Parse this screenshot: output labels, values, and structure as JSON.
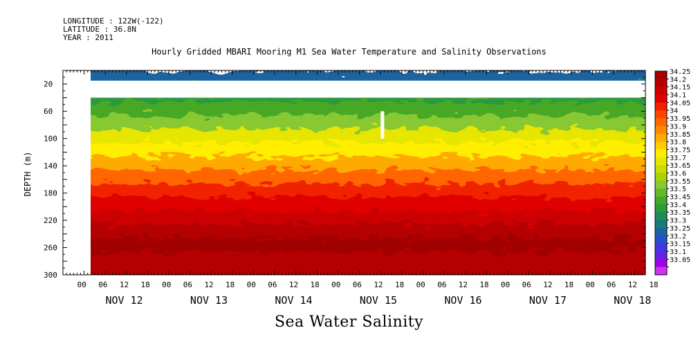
{
  "header": {
    "longitude": "LONGITUDE : 122W(-122)",
    "latitude": "LATITUDE : 36.8N",
    "year": "YEAR : 2011"
  },
  "chart_data": {
    "type": "heatmap",
    "title": "Hourly Gridded MBARI Mooring M1 Sea Water Temperature and Salinity Observations",
    "xlabel": "Sea Water Salinity",
    "ylabel": "DEPTH (m)",
    "ylim": [
      300,
      0
    ],
    "y_ticks": [
      20,
      60,
      100,
      140,
      180,
      220,
      260,
      300
    ],
    "x_hour_ticks": [
      "00",
      "06",
      "12",
      "18",
      "00",
      "06",
      "12",
      "18",
      "00",
      "06",
      "12",
      "18",
      "00",
      "06",
      "12",
      "18",
      "00",
      "06",
      "12",
      "18",
      "00",
      "06",
      "12",
      "18",
      "00",
      "06",
      "12",
      "18"
    ],
    "x_day_labels": [
      "NOV 12",
      "NOV 13",
      "NOV 14",
      "NOV 15",
      "NOV 16",
      "NOV 17",
      "NOV 18"
    ],
    "x_start": "2011-11-12T00:00",
    "data_start": "2011-11-12T06:00",
    "x_end": "2011-11-18T21:00",
    "colorbar_levels": [
      "34.25",
      "34.2",
      "34.15",
      "34.1",
      "34.05",
      "34",
      "33.95",
      "33.9",
      "33.85",
      "33.8",
      "33.75",
      "33.7",
      "33.65",
      "33.6",
      "33.55",
      "33.5",
      "33.45",
      "33.4",
      "33.35",
      "33.3",
      "33.25",
      "33.2",
      "33.15",
      "33.1",
      "33.05"
    ],
    "colorbar_colors": [
      "#a00000",
      "#b40000",
      "#cc0000",
      "#e00000",
      "#f02000",
      "#ff4400",
      "#ff6600",
      "#ff8800",
      "#ffaa00",
      "#ffcc00",
      "#ffee00",
      "#e6e600",
      "#c8dc00",
      "#a8d200",
      "#88c832",
      "#66b828",
      "#46a828",
      "#2a9a3c",
      "#1e8c5a",
      "#1a7a78",
      "#1a64a0",
      "#2850c8",
      "#4038e0",
      "#6422e6",
      "#a000e6",
      "#cc33ee"
    ],
    "series": [
      {
        "depth_m": 10,
        "salinity": 33.25
      },
      {
        "depth_m": 40,
        "salinity": 33.4
      },
      {
        "depth_m": 60,
        "salinity": 33.45
      },
      {
        "depth_m": 80,
        "salinity": 33.55
      },
      {
        "depth_m": 100,
        "salinity": 33.7
      },
      {
        "depth_m": 120,
        "salinity": 33.75
      },
      {
        "depth_m": 140,
        "salinity": 33.85
      },
      {
        "depth_m": 160,
        "salinity": 33.95
      },
      {
        "depth_m": 180,
        "salinity": 34.05
      },
      {
        "depth_m": 200,
        "salinity": 34.1
      },
      {
        "depth_m": 220,
        "salinity": 34.15
      },
      {
        "depth_m": 240,
        "salinity": 34.2
      },
      {
        "depth_m": 260,
        "salinity": 34.25
      },
      {
        "depth_m": 280,
        "salinity": 34.2
      },
      {
        "depth_m": 300,
        "salinity": 34.2
      }
    ],
    "gaps": [
      {
        "from_depth_m": 15,
        "to_depth_m": 40,
        "note": "no data"
      },
      {
        "from_time": "2011-11-15T18:00",
        "to_time": "2011-11-15T19:00",
        "from_depth_m": 60,
        "to_depth_m": 100,
        "note": "no data"
      }
    ]
  }
}
